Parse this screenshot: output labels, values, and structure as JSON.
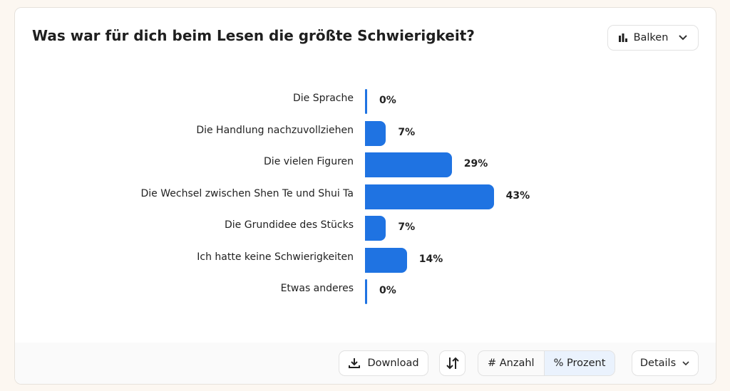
{
  "header": {
    "title": "Was war für dich beim Lesen die größte Schwierigkeit?",
    "chart_type_select": {
      "icon": "bar-chart-icon",
      "label": "Balken"
    }
  },
  "footer": {
    "download_label": "Download",
    "sort_icon": "sort-arrows-icon",
    "toggle": {
      "count_label": "# Anzahl",
      "percent_label": "% Prozent",
      "selected": "percent"
    },
    "details_label": "Details"
  },
  "colors": {
    "bar": "#1f73e2"
  },
  "chart_data": {
    "type": "bar",
    "orientation": "horizontal",
    "title": "Was war für dich beim Lesen die größte Schwierigkeit?",
    "categories": [
      "Die Sprache",
      "Die Handlung nachzuvollziehen",
      "Die vielen Figuren",
      "Die Wechsel zwischen Shen Te und Shui Ta",
      "Die Grundidee des Stücks",
      "Ich hatte keine Schwierigkeiten",
      "Etwas anderes"
    ],
    "values": [
      0,
      7,
      29,
      43,
      7,
      14,
      0
    ],
    "value_labels": [
      "0%",
      "7%",
      "29%",
      "43%",
      "7%",
      "14%",
      "0%"
    ],
    "unit": "%"
  }
}
